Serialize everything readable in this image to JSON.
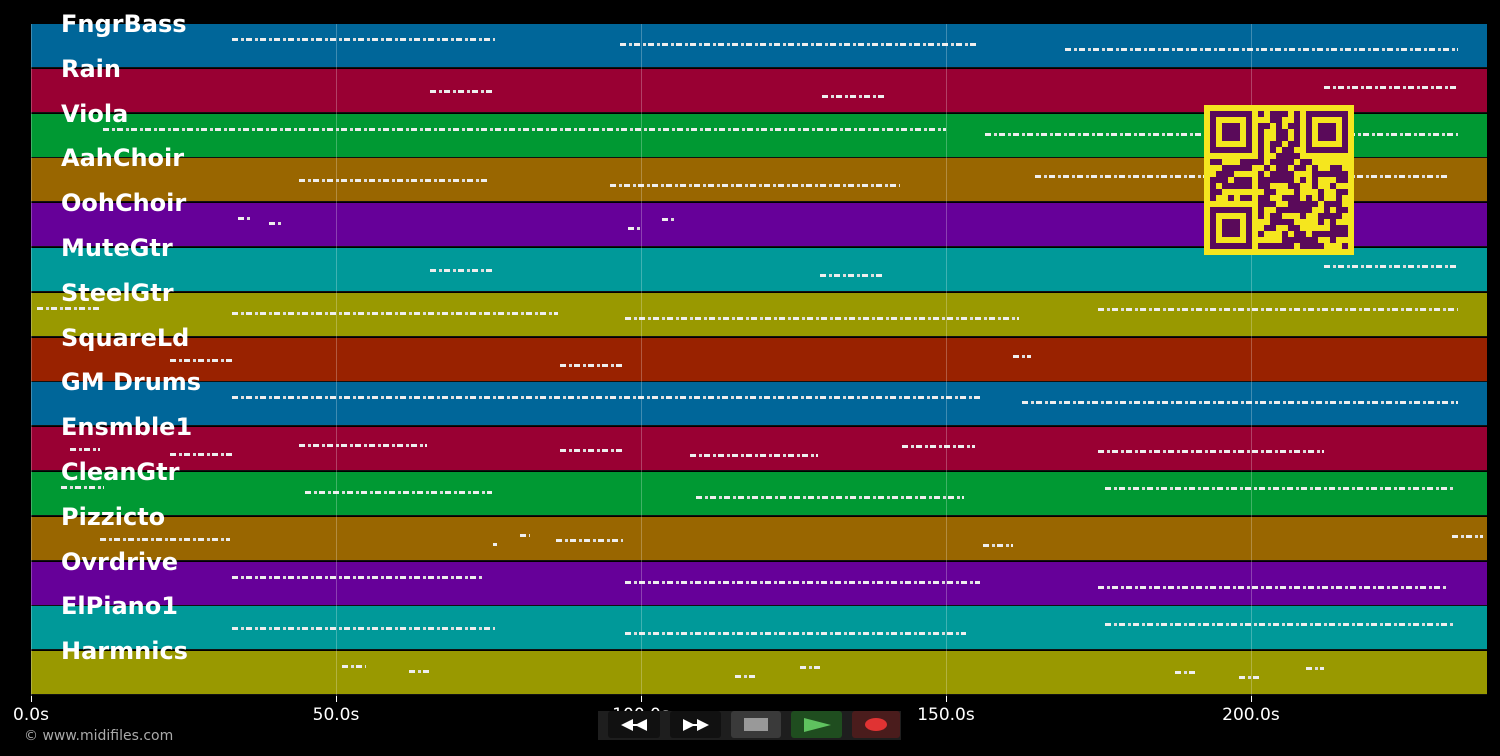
{
  "tracks": [
    {
      "name": "FngrBass",
      "color": "#006699",
      "notes": [
        [
          33,
          76
        ],
        [
          96.5,
          155
        ],
        [
          169.5,
          234
        ]
      ]
    },
    {
      "name": "Rain",
      "color": "#990033",
      "notes": [
        [
          65.4,
          76
        ],
        [
          129.7,
          140
        ],
        [
          212,
          234
        ]
      ]
    },
    {
      "name": "Viola",
      "color": "#009933",
      "notes": [
        [
          11.8,
          150
        ],
        [
          156.4,
          234
        ]
      ]
    },
    {
      "name": "AahChoir",
      "color": "#996600",
      "notes": [
        [
          44,
          75
        ],
        [
          95,
          142.5
        ],
        [
          164.6,
          232.6
        ]
      ]
    },
    {
      "name": "OohChoir",
      "color": "#660099",
      "notes": [
        [
          34,
          36
        ],
        [
          39,
          41.3
        ],
        [
          97.9,
          99.8
        ],
        [
          103.4,
          105.4
        ]
      ]
    },
    {
      "name": "MuteGtr",
      "color": "#009999",
      "notes": [
        [
          65.4,
          76
        ],
        [
          129.4,
          140
        ],
        [
          212,
          234
        ]
      ]
    },
    {
      "name": "SteelGtr",
      "color": "#999900",
      "notes": [
        [
          1,
          11.6
        ],
        [
          33,
          86.4
        ],
        [
          97.4,
          162
        ],
        [
          175,
          234
        ]
      ]
    },
    {
      "name": "SquareLd",
      "color": "#992200",
      "notes": [
        [
          22.8,
          33
        ],
        [
          86.7,
          97.4
        ],
        [
          161,
          164
        ]
      ]
    },
    {
      "name": "GM Drums",
      "color": "#006699",
      "notes": [
        [
          33,
          155.6
        ],
        [
          162.5,
          234
        ]
      ]
    },
    {
      "name": "Ensmble1",
      "color": "#990033",
      "notes": [
        [
          6.4,
          11.3
        ],
        [
          22.8,
          33
        ],
        [
          44,
          65
        ],
        [
          86.7,
          97.4
        ],
        [
          108,
          129
        ],
        [
          142.8,
          154.8
        ],
        [
          175,
          212
        ]
      ]
    },
    {
      "name": "CleanGtr",
      "color": "#009933",
      "notes": [
        [
          5,
          12
        ],
        [
          45,
          75.6
        ],
        [
          109,
          153
        ],
        [
          176,
          233.5
        ]
      ]
    },
    {
      "name": "Pizzicto",
      "color": "#996600",
      "notes": [
        [
          11.3,
          32.6
        ],
        [
          75.7,
          76.4
        ],
        [
          80.2,
          81.8
        ],
        [
          86,
          97
        ],
        [
          156,
          161
        ],
        [
          233,
          238
        ]
      ]
    },
    {
      "name": "Ovrdrive",
      "color": "#660099",
      "notes": [
        [
          33,
          74
        ],
        [
          97.4,
          155.6
        ],
        [
          175,
          232
        ]
      ]
    },
    {
      "name": "ElPiano1",
      "color": "#009999",
      "notes": [
        [
          33,
          76
        ],
        [
          97.4,
          153.3
        ],
        [
          176,
          233.5
        ]
      ]
    },
    {
      "name": "Harmnics",
      "color": "#999900",
      "notes": [
        [
          51,
          55
        ],
        [
          62,
          65.4
        ],
        [
          115.4,
          118.7
        ],
        [
          126,
          129.3
        ],
        [
          187.5,
          190.8
        ],
        [
          198,
          201.5
        ],
        [
          209,
          212
        ]
      ]
    }
  ],
  "axis": {
    "max_seconds": 238.7,
    "ticks": [
      {
        "value": 0,
        "label": "0.0s"
      },
      {
        "value": 50,
        "label": "50.0s"
      },
      {
        "value": 100,
        "label": "100.0s"
      },
      {
        "value": 150,
        "label": "150.0s"
      },
      {
        "value": 200,
        "label": "200.0s"
      }
    ]
  },
  "copyright": "© www.midifiles.com",
  "controls": {
    "rewind": {
      "icon": "rewind-icon",
      "color": "#111111"
    },
    "fast_forward": {
      "icon": "fast-forward-icon",
      "color": "#111111"
    },
    "stop": {
      "icon": "stop-icon",
      "color": "#3a3a3a"
    },
    "play": {
      "icon": "play-icon",
      "color": "#1f4d1f"
    },
    "record": {
      "icon": "record-icon",
      "color": "#4a1c1c"
    }
  },
  "qr_code": {
    "colors": [
      "#f5e61e",
      "#5a0a5a"
    ]
  }
}
